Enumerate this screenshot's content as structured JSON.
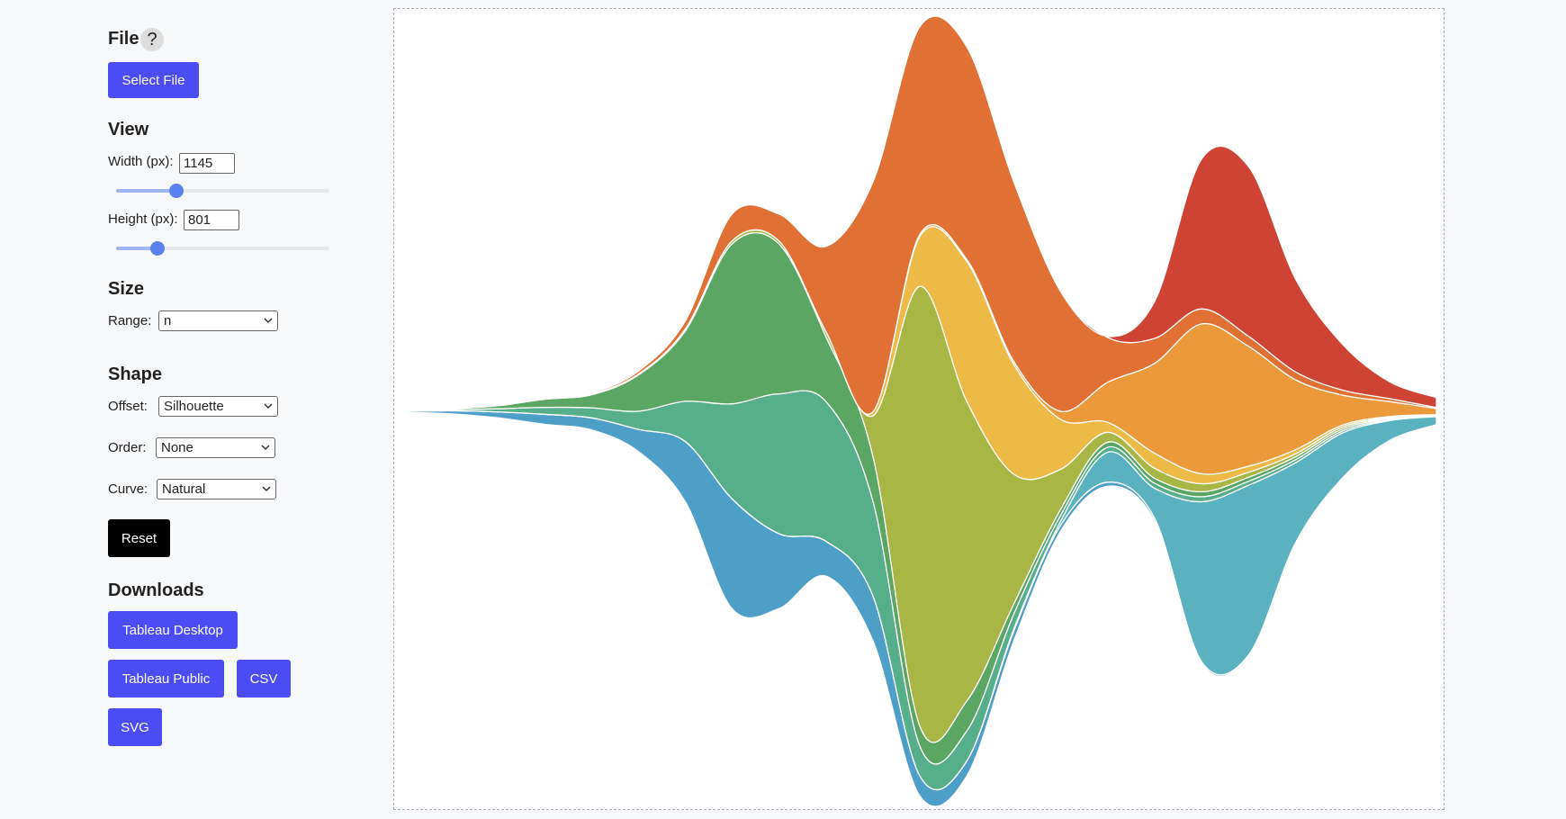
{
  "sidebar": {
    "file": {
      "heading": "File",
      "help": "?",
      "button": "Select File"
    },
    "view": {
      "heading": "View",
      "width_label": "Width (px):",
      "width": 1145,
      "height_label": "Height (px):",
      "height": 801
    },
    "size": {
      "heading": "Size",
      "range_label": "Range:",
      "range": "n"
    },
    "shape": {
      "heading": "Shape",
      "offset_label": "Offset:",
      "offset": "Silhouette",
      "order_label": "Order:",
      "order": "None",
      "curve_label": "Curve:",
      "curve": "Natural",
      "reset": "Reset"
    },
    "downloads": {
      "heading": "Downloads",
      "buttons": [
        "Tableau Desktop",
        "Tableau Public",
        "CSV",
        "SVG"
      ]
    }
  },
  "chart_data": {
    "type": "streamgraph",
    "categories": [
      null,
      null,
      null,
      null,
      null,
      null,
      null,
      null,
      null,
      null,
      null,
      null,
      null,
      null,
      null,
      null,
      null,
      null,
      null,
      null,
      null,
      null,
      null
    ],
    "series": [
      {
        "color": "#4e9fc7",
        "values": [
          1,
          3,
          6,
          10,
          12,
          22,
          60,
          110,
          75,
          35,
          45,
          20,
          15,
          10,
          6,
          4,
          3,
          2,
          1,
          1,
          0.5,
          0.5,
          0.5
        ]
      },
      {
        "color": "#5ab1bf",
        "values": [
          0,
          0,
          0,
          0,
          0,
          0,
          0,
          0,
          0,
          0,
          0,
          0,
          0,
          2,
          4,
          30,
          30,
          160,
          170,
          80,
          45,
          20,
          8
        ]
      },
      {
        "color": "#56ae8b",
        "values": [
          0.5,
          1,
          3,
          7,
          10,
          18,
          40,
          95,
          140,
          140,
          95,
          30,
          30,
          15,
          6,
          5,
          5,
          5,
          4,
          3,
          2,
          1,
          0.5
        ]
      },
      {
        "color": "#5aa662",
        "values": [
          0.5,
          1,
          3,
          8,
          13,
          36,
          70,
          160,
          150,
          65,
          45,
          20,
          30,
          10,
          6,
          5,
          5,
          5,
          4,
          3,
          2,
          1,
          0.5
        ]
      },
      {
        "color": "#a8b646",
        "values": [
          0,
          0,
          1,
          1,
          1,
          1,
          2,
          3,
          3,
          5,
          40,
          440,
          300,
          130,
          40,
          10,
          10,
          8,
          5,
          3,
          2,
          1,
          0.5
        ]
      },
      {
        "color": "#edb947",
        "values": [
          0,
          0,
          0,
          0,
          0,
          0,
          0,
          0,
          0,
          0,
          4,
          50,
          140,
          110,
          50,
          10,
          15,
          10,
          6,
          4,
          2,
          1,
          0.5
        ]
      },
      {
        "color": "#ec993b",
        "values": [
          0,
          0,
          0,
          0,
          0,
          0,
          0,
          0,
          0,
          0,
          0,
          2,
          2,
          3,
          8,
          40,
          90,
          150,
          120,
          70,
          30,
          15,
          6
        ]
      },
      {
        "color": "#e17034",
        "values": [
          0,
          0,
          0,
          0,
          1,
          3,
          8,
          27,
          27,
          85,
          230,
          208,
          213,
          180,
          120,
          45,
          25,
          15,
          10,
          8,
          5,
          3,
          1
        ]
      },
      {
        "color": "#cf4334",
        "values": [
          0,
          0,
          0,
          0,
          0,
          0,
          0,
          0,
          0,
          0,
          0,
          0,
          0,
          0,
          0,
          1,
          37,
          150,
          170,
          93,
          46,
          17,
          10
        ]
      }
    ]
  }
}
